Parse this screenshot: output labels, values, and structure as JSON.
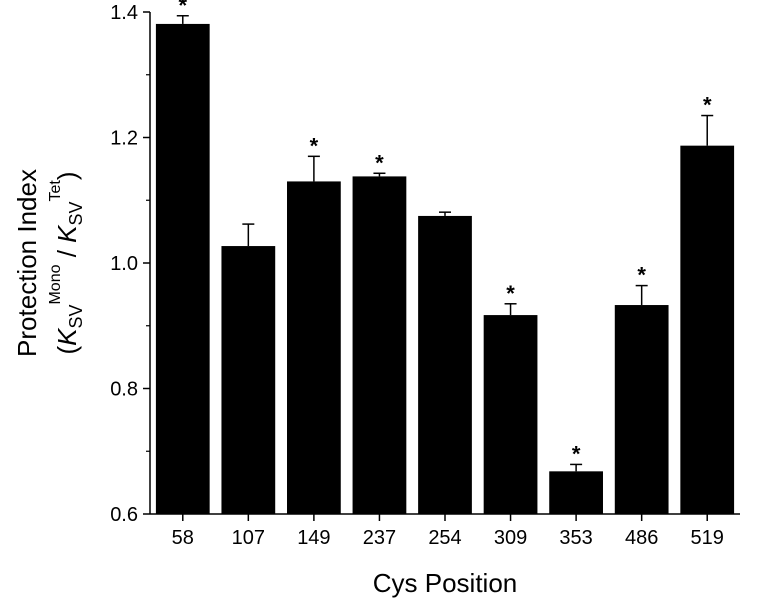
{
  "chart_data": {
    "type": "bar",
    "xlabel": "Cys Position",
    "ylabel": {
      "line1": "Protection Index",
      "line2_parts": [
        {
          "text": "(",
          "style": "normal"
        },
        {
          "text": "K",
          "style": "italic"
        },
        {
          "text": "SV",
          "style": "sub"
        },
        {
          "text": "Mono",
          "style": "sup"
        },
        {
          "text": " / ",
          "style": "normal"
        },
        {
          "text": "K",
          "style": "italic"
        },
        {
          "text": "SV",
          "style": "sub"
        },
        {
          "text": "Tet",
          "style": "sup"
        },
        {
          "text": ")",
          "style": "normal"
        }
      ]
    },
    "ylim": [
      0.6,
      1.4
    ],
    "yticks": [
      0.6,
      0.8,
      1.0,
      1.2,
      1.4
    ],
    "ytick_labels": [
      "0.6",
      "0.8",
      "1.0",
      "1.2",
      "1.4"
    ],
    "categories": [
      "58",
      "107",
      "149",
      "237",
      "254",
      "309",
      "353",
      "486",
      "519"
    ],
    "values": [
      1.381,
      1.027,
      1.13,
      1.138,
      1.075,
      0.917,
      0.668,
      0.933,
      1.187
    ],
    "errors": [
      0.013,
      0.035,
      0.04,
      0.005,
      0.006,
      0.018,
      0.011,
      0.031,
      0.048
    ],
    "significance": [
      "*",
      "",
      "*",
      "*",
      "",
      "*",
      "*",
      "*",
      "*"
    ],
    "bar_color": "#000000",
    "grid": false,
    "legend": "none"
  }
}
